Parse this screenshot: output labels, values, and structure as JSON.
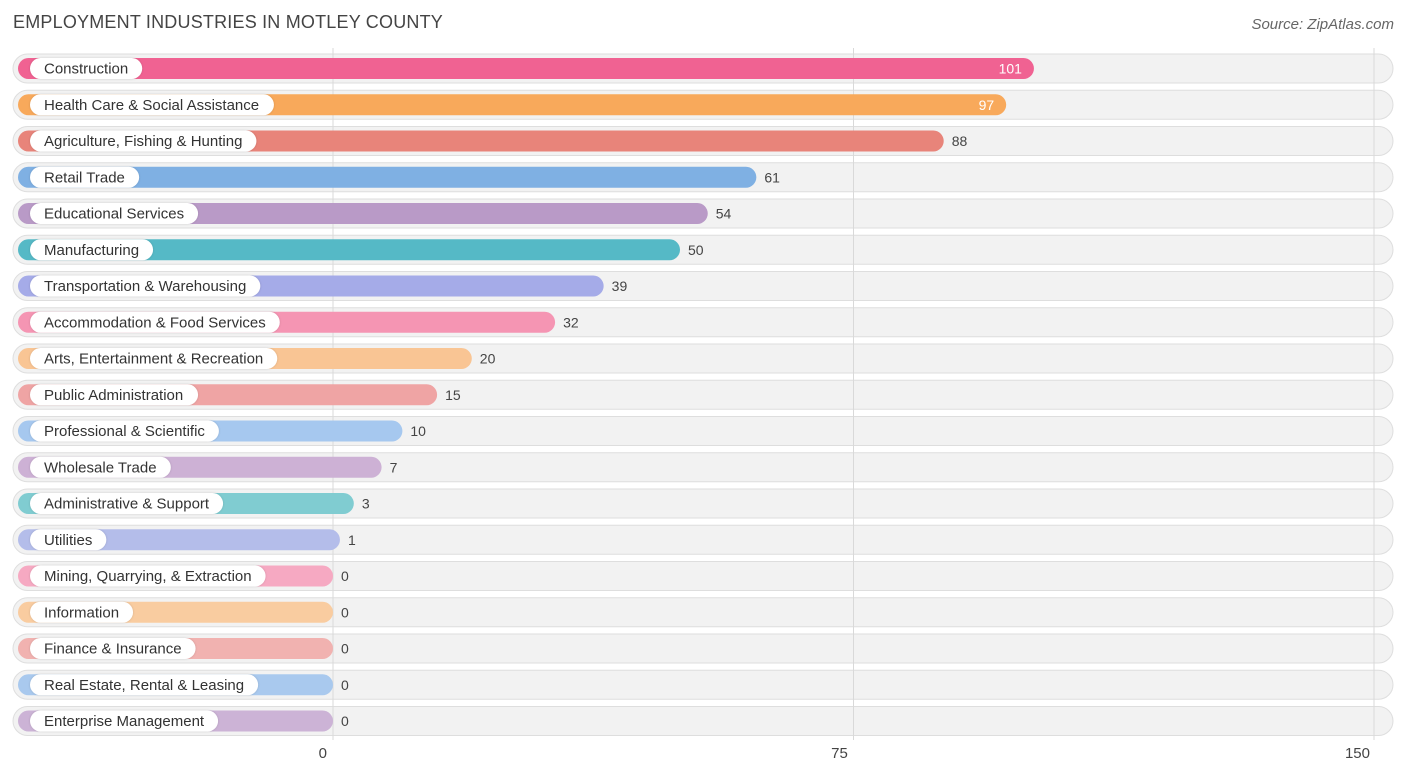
{
  "title": "EMPLOYMENT INDUSTRIES IN MOTLEY COUNTY",
  "source": "Source: ZipAtlas.com",
  "chart_data": {
    "type": "bar",
    "orientation": "horizontal",
    "title": "EMPLOYMENT INDUSTRIES IN MOTLEY COUNTY",
    "xlim": [
      0,
      150
    ],
    "xticks": [
      0,
      75,
      150
    ],
    "grid": true,
    "categories": [
      "Construction",
      "Health Care & Social Assistance",
      "Agriculture, Fishing & Hunting",
      "Retail Trade",
      "Educational Services",
      "Manufacturing",
      "Transportation & Warehousing",
      "Accommodation & Food Services",
      "Arts, Entertainment & Recreation",
      "Public Administration",
      "Professional & Scientific",
      "Wholesale Trade",
      "Administrative & Support",
      "Utilities",
      "Mining, Quarrying, & Extraction",
      "Information",
      "Finance & Insurance",
      "Real Estate, Rental & Leasing",
      "Enterprise Management"
    ],
    "values": [
      101,
      97,
      88,
      61,
      54,
      50,
      39,
      32,
      20,
      15,
      10,
      7,
      3,
      1,
      0,
      0,
      0,
      0,
      0
    ],
    "colors": [
      "#f06292",
      "#f8a95b",
      "#e8847a",
      "#7fb0e3",
      "#b99ac7",
      "#55b9c6",
      "#a5abe8",
      "#f595b3",
      "#f9c594",
      "#efa4a4",
      "#a6c8ef",
      "#cdb1d5",
      "#80ccd1",
      "#b4bdea",
      "#f6a9c2",
      "#f9cca0",
      "#f1b2b0",
      "#a9c9ee",
      "#ccb3d6"
    ]
  }
}
